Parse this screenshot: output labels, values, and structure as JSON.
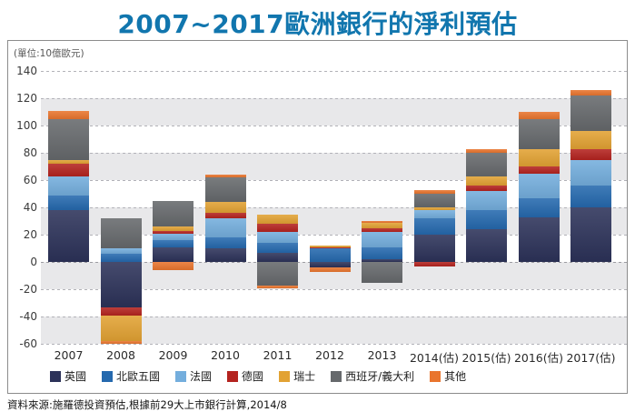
{
  "title": "2007~2017歐洲銀行的淨利預估",
  "unit_label": "(單位:10億歐元)",
  "source": "資料來源:施羅德投資預估,根據前29大上市銀行計算,2014/8",
  "colors": {
    "title_accent": "#1176ae",
    "band_gray": "#e8e8ea",
    "frame_border": "#8c8c8c",
    "gridline": "#b2b2b8"
  },
  "chart_data": {
    "type": "bar",
    "stacked": true,
    "title": "2007~2017歐洲銀行的淨利預估",
    "unit": "10億歐元",
    "categories": [
      "2007",
      "2008",
      "2009",
      "2010",
      "2011",
      "2012",
      "2013",
      "2014(估)",
      "2015(估)",
      "2016(估)",
      "2017(估)"
    ],
    "series": [
      {
        "name": "英國",
        "color": "#2c3259",
        "values": [
          38,
          -33,
          11,
          10,
          7,
          -4,
          2,
          20,
          24,
          33,
          40
        ]
      },
      {
        "name": "北歐五國",
        "color": "#2569ae",
        "values": [
          11,
          6,
          5,
          8,
          7,
          10,
          9,
          12,
          14,
          14,
          16
        ]
      },
      {
        "name": "法國",
        "color": "#74aedd",
        "values": [
          14,
          4,
          5,
          14,
          8,
          0,
          11,
          6,
          14,
          18,
          19
        ]
      },
      {
        "name": "德國",
        "color": "#b4231f",
        "values": [
          9,
          -6,
          2,
          4,
          6,
          1,
          3,
          -3,
          4,
          5,
          8
        ]
      },
      {
        "name": "瑞士",
        "color": "#e2a233",
        "values": [
          3,
          -19,
          3,
          8,
          7,
          1,
          4,
          2,
          7,
          13,
          13
        ]
      },
      {
        "name": "西班牙/義大利",
        "color": "#66696c",
        "values": [
          30,
          22,
          19,
          18,
          -17,
          0,
          -15,
          10,
          17,
          22,
          26
        ]
      },
      {
        "name": "其他",
        "color": "#e9752e",
        "values": [
          6,
          -2,
          -6,
          2,
          -2,
          -3,
          1,
          3,
          3,
          5,
          4
        ]
      }
    ],
    "ylim": [
      -60,
      140
    ],
    "yticks": [
      140,
      120,
      100,
      80,
      60,
      40,
      20,
      0,
      -20,
      -40,
      -60
    ],
    "grid": "horizontal dashed every 20, alternating gray/white bands every 20",
    "legend_position": "bottom"
  }
}
